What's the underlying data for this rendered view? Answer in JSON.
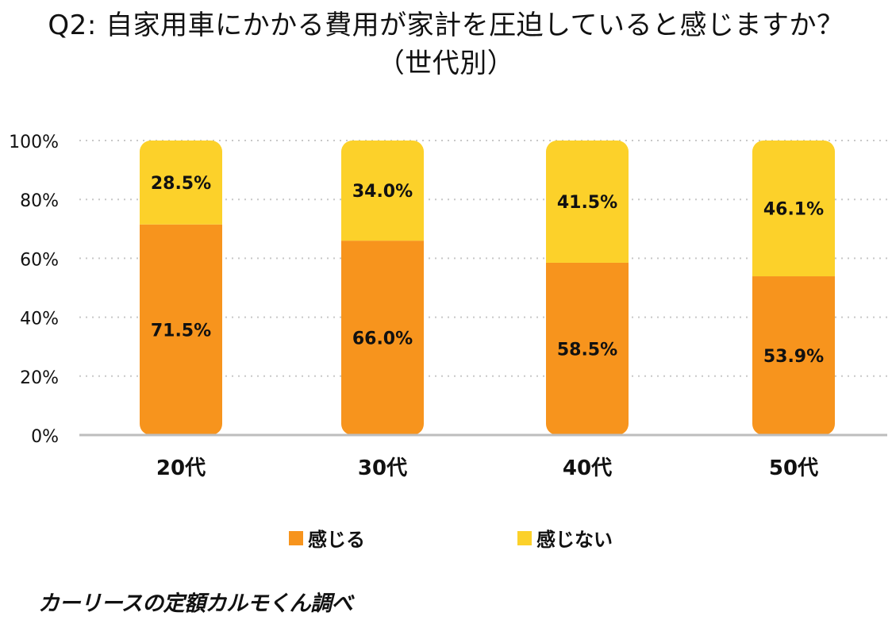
{
  "title": {
    "line1": "Q2: 自家用車にかかる費用が家計を圧迫していると感じますか？",
    "line2": "（世代別）"
  },
  "chart_data": {
    "type": "bar",
    "stacked": true,
    "categories": [
      "20代",
      "30代",
      "40代",
      "50代"
    ],
    "series": [
      {
        "name": "感じる",
        "color": "#f7941d",
        "values": [
          71.5,
          66.0,
          58.5,
          53.9
        ],
        "labels": [
          "71.5%",
          "66.0%",
          "58.5%",
          "53.9%"
        ]
      },
      {
        "name": "感じない",
        "color": "#fcd12a",
        "values": [
          28.5,
          34.0,
          41.5,
          46.1
        ],
        "labels": [
          "28.5%",
          "34.0%",
          "41.5%",
          "46.1%"
        ]
      }
    ],
    "ylim": [
      0,
      100
    ],
    "yticks": [
      0,
      20,
      40,
      60,
      80,
      100
    ],
    "ytick_labels": [
      "0%",
      "20%",
      "40%",
      "60%",
      "80%",
      "100%"
    ],
    "grid": true,
    "legend_position": "bottom"
  },
  "legend": {
    "item1": "感じる",
    "item2": "感じない"
  },
  "source": "カーリースの定額カルモくん調べ"
}
